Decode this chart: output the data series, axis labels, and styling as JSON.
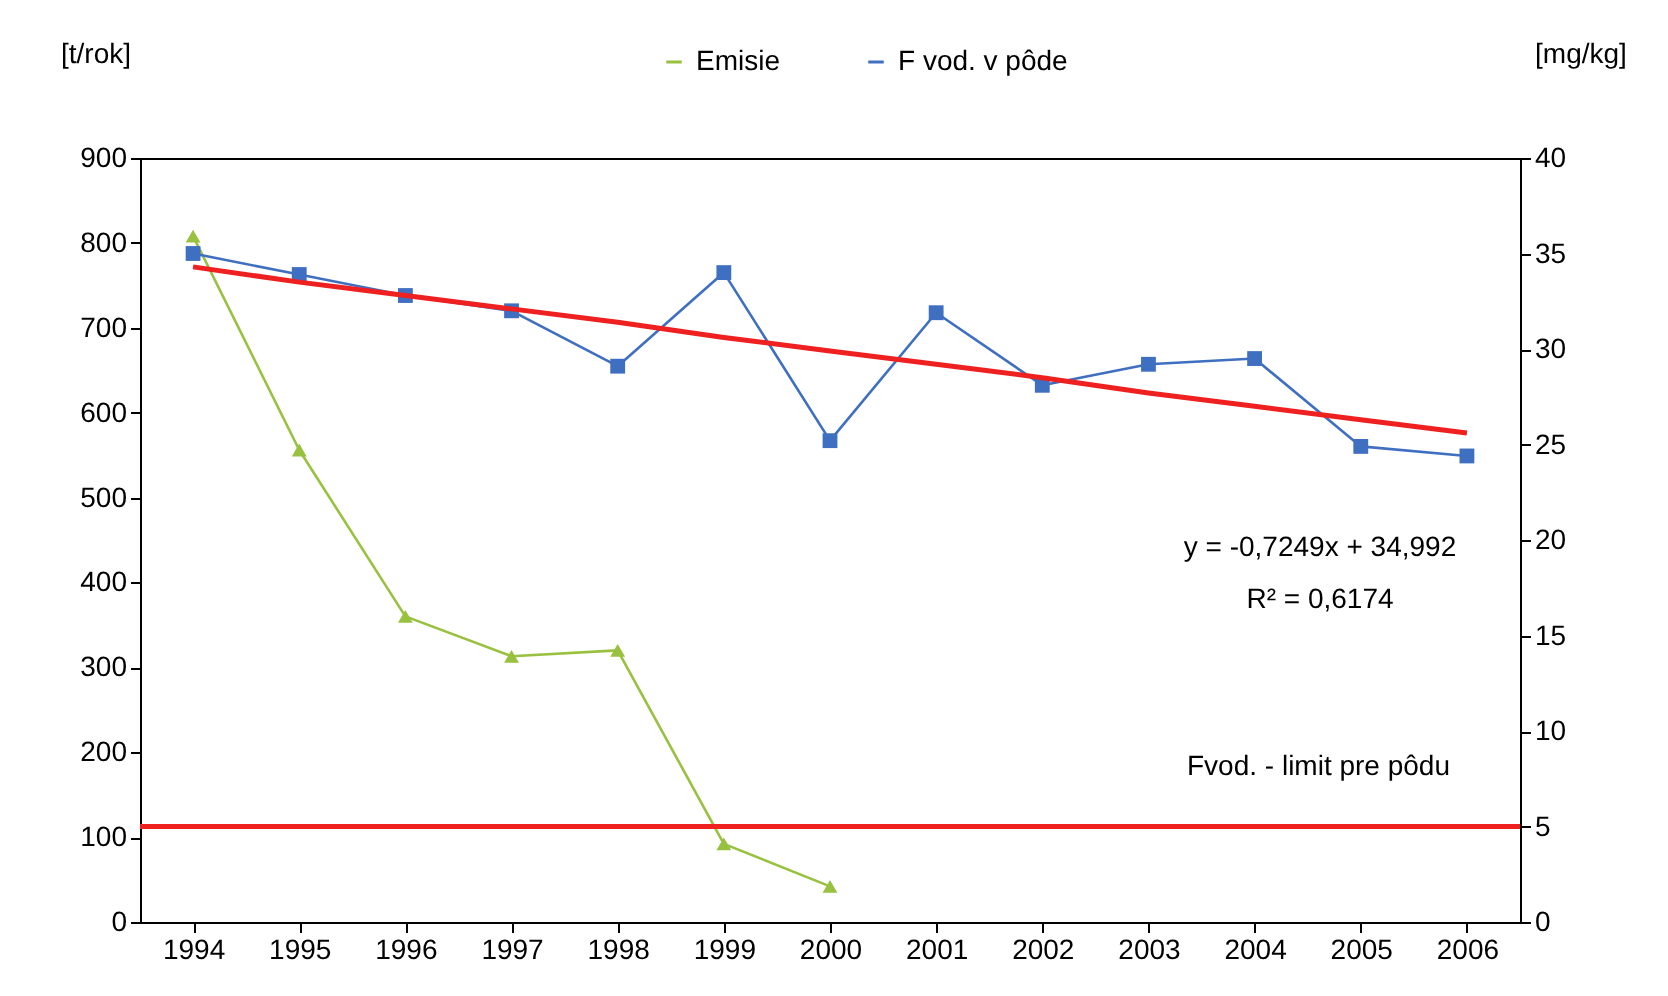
{
  "chart_data": {
    "type": "line",
    "categories": [
      "1994",
      "1995",
      "1996",
      "1997",
      "1998",
      "1999",
      "2000",
      "2001",
      "2002",
      "2003",
      "2004",
      "2005",
      "2006"
    ],
    "ylabel": "[t/rok]",
    "y2label": "[mg/kg]",
    "ylim": [
      0,
      900
    ],
    "yticks": [
      0,
      100,
      200,
      300,
      400,
      500,
      600,
      700,
      800,
      900
    ],
    "y2lim": [
      0,
      40
    ],
    "y2ticks": [
      0,
      5,
      10,
      15,
      20,
      25,
      30,
      35,
      40
    ],
    "series": [
      {
        "name": "Emisie",
        "color": "#99c140",
        "marker": "triangle",
        "values": [
          808,
          556,
          360,
          313,
          320,
          92,
          42,
          null,
          null,
          null,
          null,
          null,
          null
        ]
      },
      {
        "name": "F vod. v pôde",
        "color": "#3f6fc0",
        "marker": "square",
        "axis": "y2",
        "values": [
          35.0,
          33.9,
          32.8,
          32.0,
          29.1,
          34.0,
          25.2,
          31.9,
          28.1,
          29.2,
          29.5,
          24.9,
          24.4
        ]
      },
      {
        "type": "line",
        "color": "#ee2020",
        "axis": "y2",
        "marker": "none",
        "values": [
          34.3,
          33.5,
          32.8,
          32.1,
          31.4,
          30.6,
          29.9,
          29.2,
          28.5,
          27.7,
          27.0,
          26.3,
          25.6
        ]
      }
    ],
    "ref_lines": [
      {
        "axis": "y2",
        "value": 5,
        "label": "Fvod. - limit pre pôdu",
        "color": "#ee2020"
      }
    ],
    "annotations": [
      "y = -0,7249x + 34,992",
      "R² = 0,6174"
    ],
    "legend": "top right",
    "grid": false
  }
}
